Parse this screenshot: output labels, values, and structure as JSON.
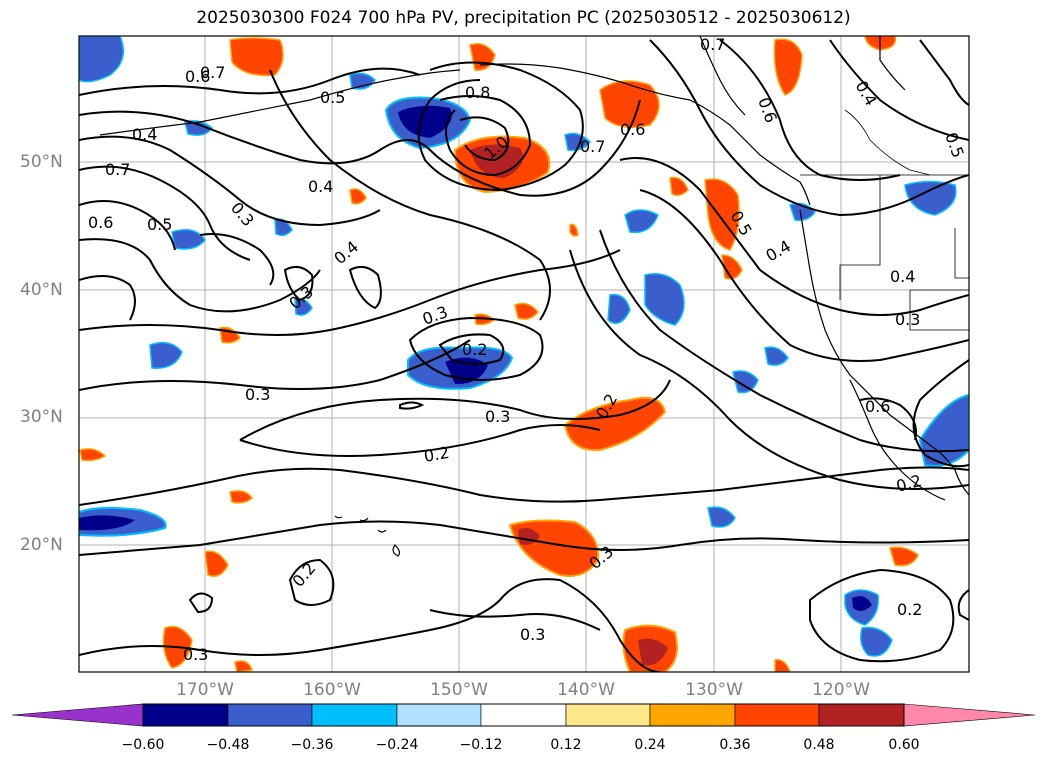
{
  "title": "2025030300 F024 700 hPa PV, precipitation PC (2025030512 - 2025030612)",
  "map": {
    "lat_labels": [
      "50°N",
      "40°N",
      "30°N",
      "20°N"
    ],
    "lon_labels": [
      "170°W",
      "160°W",
      "150°W",
      "140°W",
      "130°W",
      "120°W"
    ],
    "contour_labels": [
      "0.7",
      "0.6",
      "0.5",
      "0.4",
      "0.3",
      "0.8",
      "1.0",
      "0.7",
      "0.6",
      "0.4",
      "0.5",
      "0.6",
      "0.7",
      "0.6",
      "0.5",
      "0.3",
      "0.4",
      "0.3",
      "0.4",
      "0.3",
      "0.2",
      "0.3",
      "0.2",
      "0.3",
      "0.2",
      "0.2",
      "0.3",
      "0.3",
      "0.2",
      "0.4",
      "0.6",
      "0.5",
      "0.2",
      "0.3",
      "0.7",
      "0.4"
    ]
  },
  "colorbar": {
    "ticks": [
      "−0.60",
      "−0.48",
      "−0.36",
      "−0.24",
      "−0.12",
      "0.12",
      "0.24",
      "0.36",
      "0.48",
      "0.60"
    ],
    "colors": [
      "#9932cc",
      "#00008b",
      "#3a5fcd",
      "#00bfff",
      "#b0e2ff",
      "#ffffff",
      "#ffe88a",
      "#ffa500",
      "#ff4500",
      "#b22222",
      "#ff88aa"
    ]
  }
}
